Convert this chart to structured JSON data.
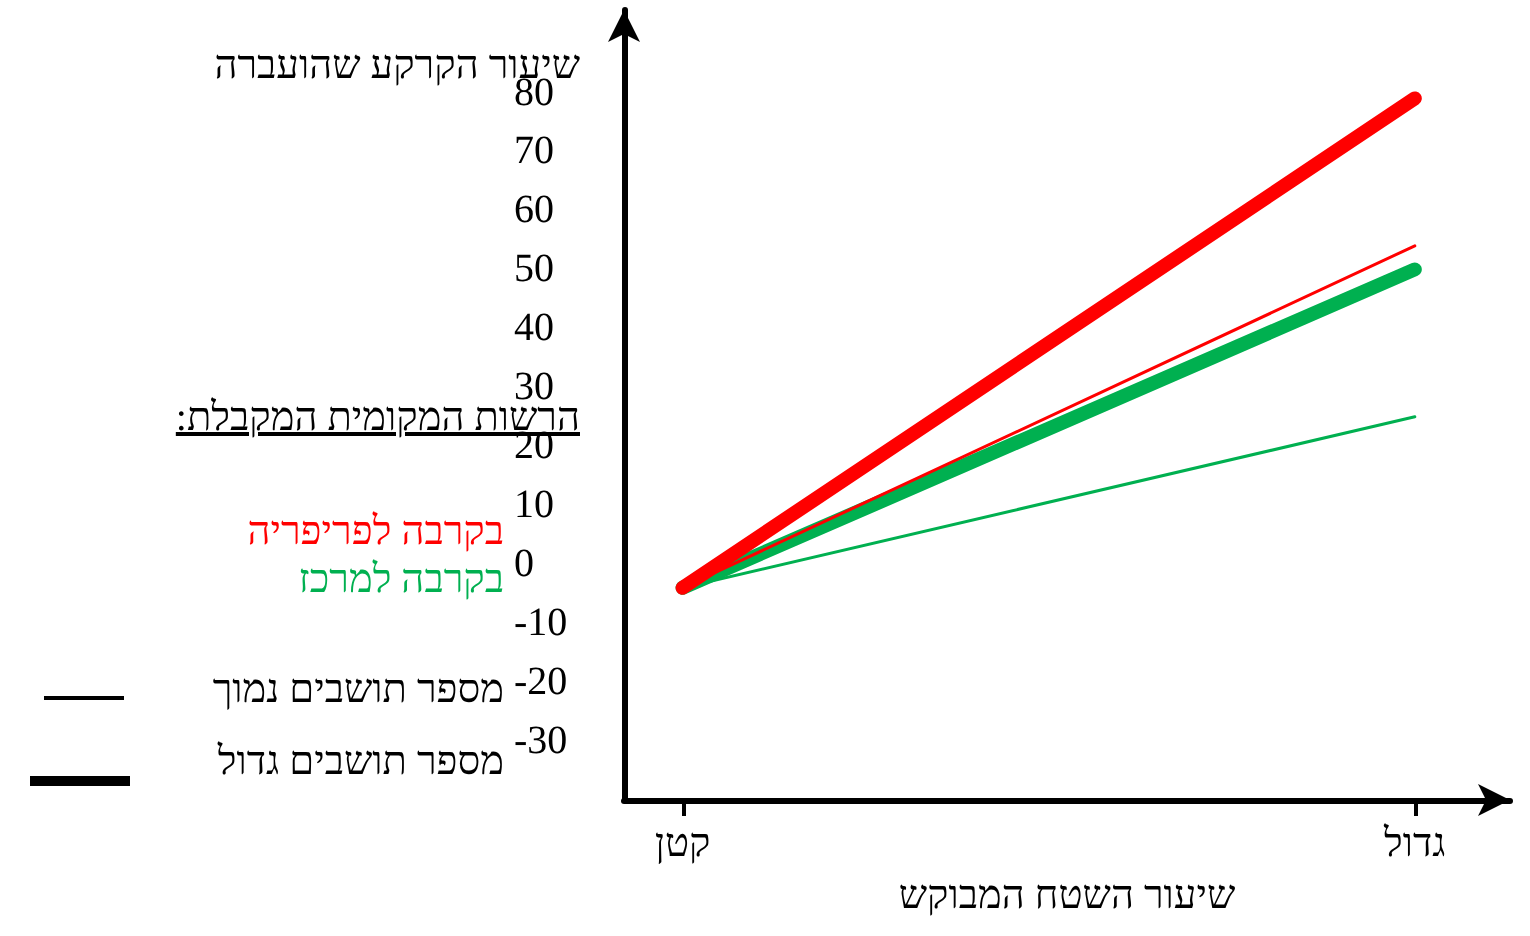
{
  "chart_data": {
    "type": "line",
    "xlabel": "שיעור השטח המבוקש",
    "ylabel": "שיעור הקרקע שהועברה",
    "categories": [
      "קטן",
      "גדול"
    ],
    "series": [
      {
        "color": "#ff0000",
        "values": [
          -4,
          79
        ]
      },
      {
        "color": "#ff0000",
        "values": [
          -4,
          54
        ]
      },
      {
        "color": "#00b050",
        "values": [
          -4,
          50
        ]
      },
      {
        "color": "#00b050",
        "values": [
          -4,
          25
        ]
      }
    ],
    "ylim": [
      -40,
      94
    ],
    "yticks": [
      -30,
      -20,
      -10,
      0,
      10,
      20,
      30,
      40,
      50,
      60,
      70,
      80
    ],
    "grid": false,
    "marker": "none",
    "line_style": "solid",
    "annotations": [
      "הרשות המקומית המקבלת:",
      "בקרבה לפריפריה",
      "בקרבה למרכז",
      "מספר תושבים נמוך",
      "מספר תושבים גדול"
    ]
  }
}
